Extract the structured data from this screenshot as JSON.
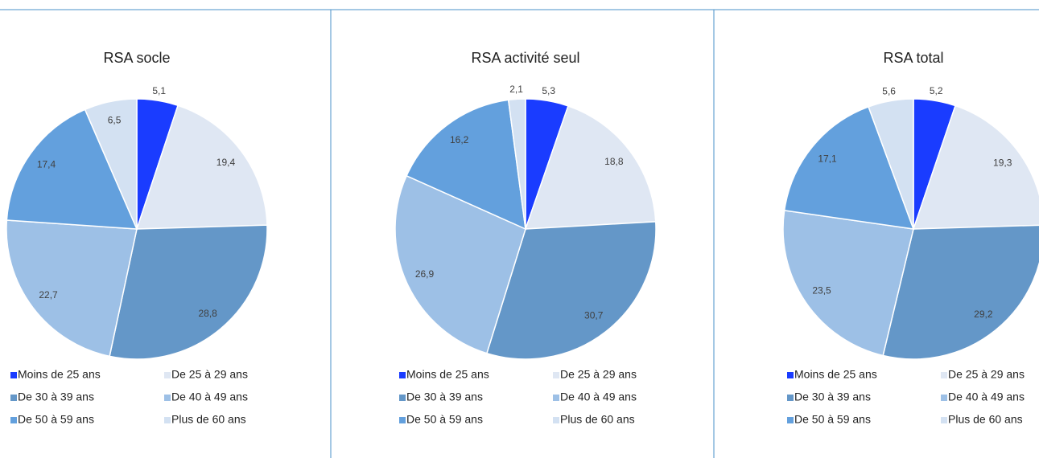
{
  "chart_data": [
    {
      "type": "pie",
      "title": "RSA socle",
      "categories": [
        "Moins de 25 ans",
        "De 25 à 29 ans",
        "De 30 à 39 ans",
        "De 40 à 49 ans",
        "De 50 à 59 ans",
        "Plus de 60 ans"
      ],
      "values": [
        5.1,
        19.4,
        28.8,
        22.7,
        17.4,
        6.5
      ],
      "value_labels": [
        "5,1",
        "19,4",
        "28,8",
        "22,7",
        "17,4",
        "6,5"
      ],
      "colors": [
        "#1a3cff",
        "#dfe7f3",
        "#6497c8",
        "#9dc0e6",
        "#63a0dd",
        "#d3e1f2"
      ]
    },
    {
      "type": "pie",
      "title": "RSA activité seul",
      "categories": [
        "Moins de 25 ans",
        "De 25 à 29 ans",
        "De 30 à 39 ans",
        "De 40 à 49 ans",
        "De 50 à 59 ans",
        "Plus de 60 ans"
      ],
      "values": [
        5.3,
        18.8,
        30.7,
        26.9,
        16.2,
        2.1
      ],
      "value_labels": [
        "5,3",
        "18,8",
        "30,7",
        "26,9",
        "16,2",
        "2,1"
      ],
      "colors": [
        "#1a3cff",
        "#dfe7f3",
        "#6497c8",
        "#9dc0e6",
        "#63a0dd",
        "#d3e1f2"
      ]
    },
    {
      "type": "pie",
      "title": "RSA total",
      "categories": [
        "Moins de 25 ans",
        "De 25 à 29 ans",
        "De 30 à 39 ans",
        "De 40 à 49 ans",
        "De 50 à 59 ans",
        "Plus de 60 ans"
      ],
      "values": [
        5.2,
        19.3,
        29.2,
        23.5,
        17.1,
        5.6
      ],
      "value_labels": [
        "5,2",
        "19,3",
        "29,2",
        "23,5",
        "17,1",
        "5,6"
      ],
      "colors": [
        "#1a3cff",
        "#dfe7f3",
        "#6497c8",
        "#9dc0e6",
        "#63a0dd",
        "#d3e1f2"
      ]
    }
  ]
}
